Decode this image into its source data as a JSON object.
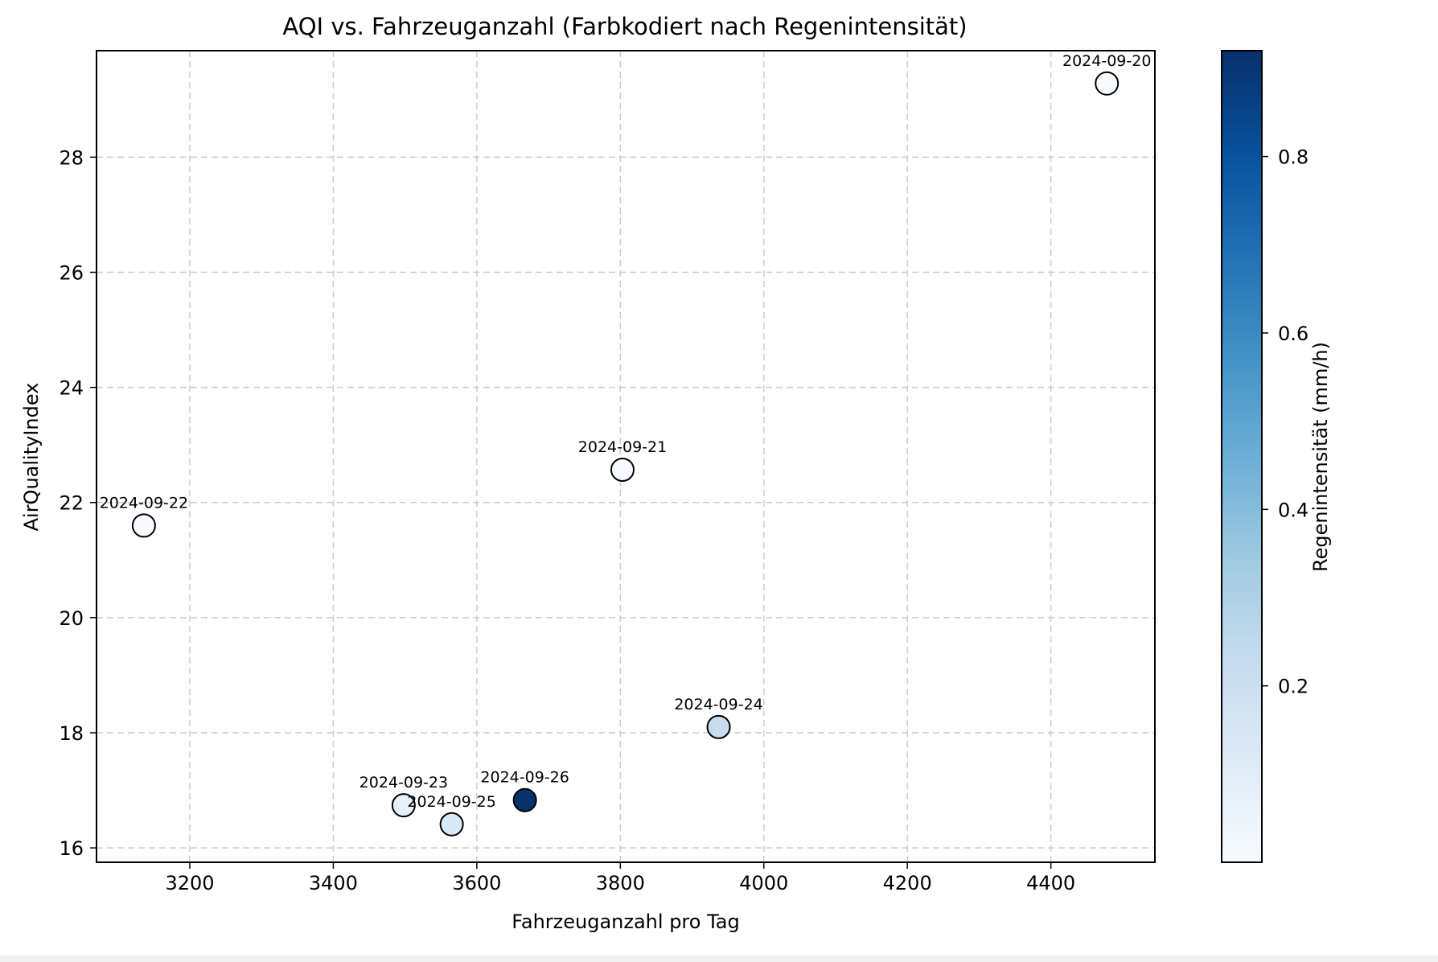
{
  "chart_data": {
    "type": "scatter",
    "title": "AQI vs. Fahrzeuganzahl (Farbkodiert nach Regenintensität)",
    "xlabel": "Fahrzeuganzahl pro Tag",
    "ylabel": "AirQualityIndex",
    "xlim": [
      3070,
      4545
    ],
    "ylim": [
      15.75,
      29.85
    ],
    "xticks": [
      3200,
      3400,
      3600,
      3800,
      4000,
      4200,
      4400
    ],
    "yticks": [
      16,
      18,
      20,
      22,
      24,
      26,
      28
    ],
    "grid": true,
    "points": [
      {
        "label": "2024-09-20",
        "x": 4478,
        "y": 29.28,
        "rain": 0.0
      },
      {
        "label": "2024-09-21",
        "x": 3803,
        "y": 22.57,
        "rain": 0.0
      },
      {
        "label": "2024-09-22",
        "x": 3136,
        "y": 21.6,
        "rain": 0.0
      },
      {
        "label": "2024-09-23",
        "x": 3498,
        "y": 16.74,
        "rain": 0.08
      },
      {
        "label": "2024-09-24",
        "x": 3937,
        "y": 18.1,
        "rain": 0.22
      },
      {
        "label": "2024-09-25",
        "x": 3565,
        "y": 16.41,
        "rain": 0.14
      },
      {
        "label": "2024-09-26",
        "x": 3667,
        "y": 16.83,
        "rain": 0.92
      }
    ],
    "colorbar": {
      "label": "Regenintensität (mm/h)",
      "range": [
        0.0,
        0.92
      ],
      "ticks": [
        0.2,
        0.4,
        0.6,
        0.8
      ],
      "tick_labels": [
        "0.2",
        "0.4",
        "0.6",
        "0.8"
      ],
      "colormap": "Blues",
      "stops": [
        "#f7fbff",
        "#deebf7",
        "#c6dbef",
        "#9ecae1",
        "#6baed6",
        "#4292c6",
        "#2171b5",
        "#08519c",
        "#08306b"
      ]
    }
  }
}
